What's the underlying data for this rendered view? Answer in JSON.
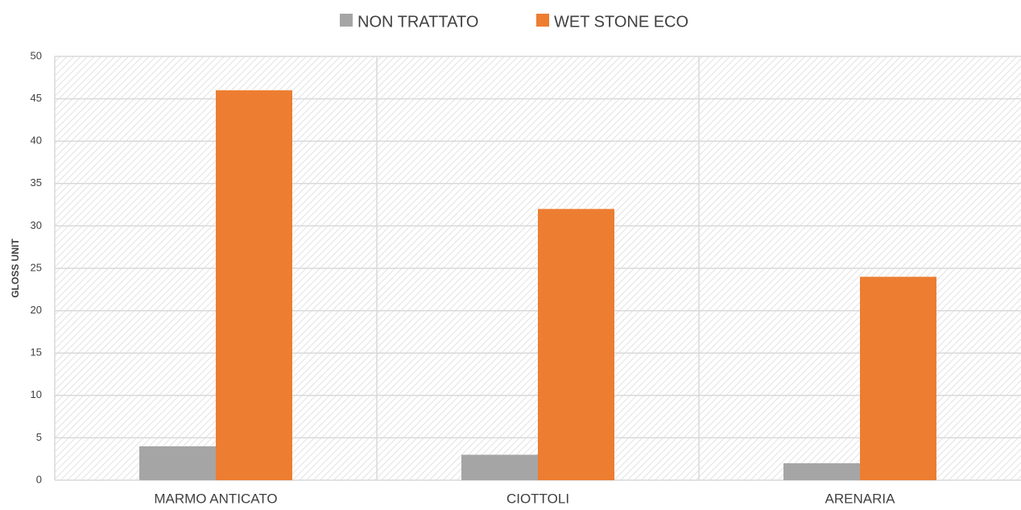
{
  "chart_data": {
    "type": "bar",
    "categories": [
      "MARMO ANTICATO",
      "CIOTTOLI",
      "ARENARIA"
    ],
    "series": [
      {
        "name": "NON TRATTATO",
        "color": "#a5a5a5",
        "values": [
          4,
          3,
          2
        ]
      },
      {
        "name": "WET STONE ECO",
        "color": "#ed7d31",
        "values": [
          46,
          32,
          24
        ]
      }
    ],
    "y_label": "GLOSS UNIT",
    "ylim": [
      0,
      50
    ],
    "yticks": [
      0,
      5,
      10,
      15,
      20,
      25,
      30,
      35,
      40,
      45,
      50
    ],
    "grid": true,
    "legend": "top"
  }
}
